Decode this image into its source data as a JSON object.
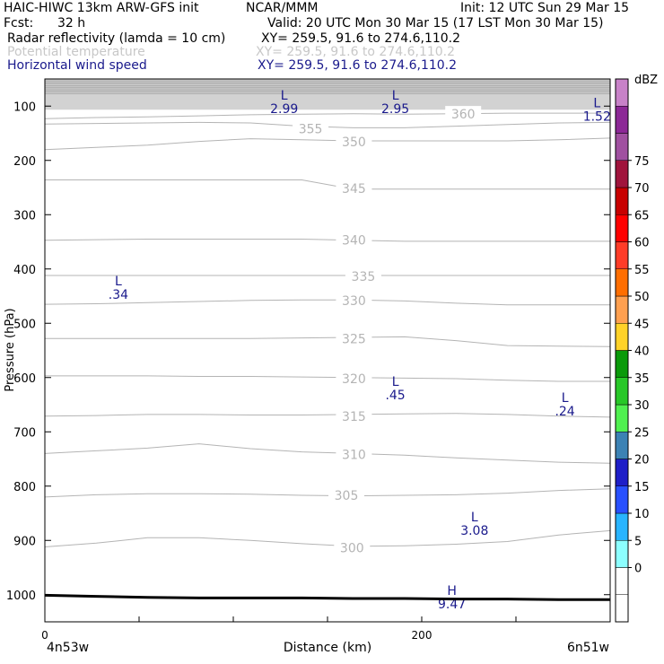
{
  "header": {
    "model": "HAIC-HIWC 13km ARW-GFS init",
    "org": "NCAR/MMM",
    "init": "Init: 12 UTC Sun 29 Mar 15",
    "fcst_label": "Fcst:",
    "fcst_value": "32 h",
    "valid": "Valid: 20 UTC Mon 30 Mar 15 (17 LST Mon 30 Mar 15)",
    "fields": [
      {
        "name": "Radar reflectivity (lamda = 10 cm)",
        "xy": "XY= 259.5, 91.6 to 274.6,110.2",
        "style": "black"
      },
      {
        "name": "Potential temperature",
        "xy": "XY= 259.5, 91.6 to 274.6,110.2",
        "style": "gray"
      },
      {
        "name": "Horizontal wind speed",
        "xy": "XY= 259.5, 91.6 to 274.6,110.2",
        "style": "blue"
      }
    ]
  },
  "chart_data": {
    "type": "contour-cross-section",
    "xlabel": "Distance (km)",
    "ylabel": "Pressure (hPa)",
    "x_ticks": [
      "0",
      "200"
    ],
    "x_endpoints": [
      "4n53w",
      "6n51w"
    ],
    "xlim": [
      0,
      300
    ],
    "y_ticks": [
      100,
      200,
      300,
      400,
      500,
      600,
      700,
      800,
      900,
      1000
    ],
    "ylim": [
      1050,
      50
    ],
    "theta_contours": [
      {
        "value": 300,
        "pressures": [
          912,
          905,
          895,
          895,
          900,
          906,
          911,
          910,
          907,
          902,
          890,
          882
        ]
      },
      {
        "value": 305,
        "pressures": [
          820,
          816,
          814,
          814,
          815,
          817,
          818,
          817,
          816,
          813,
          808,
          805
        ]
      },
      {
        "value": 310,
        "pressures": [
          740,
          735,
          730,
          722,
          731,
          737,
          740,
          743,
          748,
          752,
          756,
          758
        ]
      },
      {
        "value": 315,
        "pressures": [
          671,
          670,
          668,
          668,
          669,
          669,
          668,
          667,
          666,
          668,
          671,
          673
        ]
      },
      {
        "value": 320,
        "pressures": [
          597,
          597,
          597,
          598,
          598,
          599,
          600,
          601,
          602,
          605,
          607,
          607
        ]
      },
      {
        "value": 325,
        "pressures": [
          528,
          528,
          528,
          528,
          528,
          527,
          526,
          525,
          532,
          541,
          542,
          543
        ]
      },
      {
        "value": 330,
        "pressures": [
          465,
          464,
          462,
          460,
          458,
          457,
          457,
          459,
          463,
          466,
          466,
          466
        ]
      },
      {
        "value": 335,
        "pressures": [
          412,
          412,
          412,
          412,
          412,
          412,
          412,
          412,
          412,
          412,
          412,
          412
        ]
      },
      {
        "value": 340,
        "pressures": [
          347,
          346,
          345,
          345,
          345,
          345,
          347,
          349,
          349,
          349,
          349,
          349
        ]
      },
      {
        "value": 345,
        "pressures": [
          236,
          236,
          236,
          236,
          236,
          236,
          253,
          253,
          253,
          253,
          253,
          253
        ]
      },
      {
        "value": 350,
        "pressures": [
          180,
          176,
          172,
          165,
          160,
          162,
          164,
          164,
          164,
          164,
          162,
          159
        ]
      },
      {
        "value": 355,
        "pressures": [
          133,
          132,
          131,
          130,
          131,
          137,
          140,
          140,
          137,
          134,
          131,
          130
        ]
      },
      {
        "value": 360,
        "pressures": [
          123,
          121,
          120,
          118,
          116,
          115,
          114,
          115,
          114,
          113,
          113,
          113
        ]
      }
    ],
    "theta_label_positions": [
      {
        "text": "300",
        "x": 163,
        "p": 912
      },
      {
        "text": "305",
        "x": 160,
        "p": 815
      },
      {
        "text": "310",
        "x": 164,
        "p": 740
      },
      {
        "text": "315",
        "x": 164,
        "p": 670
      },
      {
        "text": "320",
        "x": 164,
        "p": 600
      },
      {
        "text": "325",
        "x": 164,
        "p": 527
      },
      {
        "text": "330",
        "x": 164,
        "p": 457
      },
      {
        "text": "335",
        "x": 169,
        "p": 412
      },
      {
        "text": "340",
        "x": 164,
        "p": 345
      },
      {
        "text": "345",
        "x": 164,
        "p": 250
      },
      {
        "text": "350",
        "x": 164,
        "p": 164
      },
      {
        "text": "355",
        "x": 141,
        "p": 140
      },
      {
        "text": "360",
        "x": 222,
        "p": 113
      }
    ],
    "wind_extrema": [
      {
        "kind": "L",
        "value": "2.99",
        "x": 127,
        "p": 88
      },
      {
        "kind": "L",
        "value": "2.95",
        "x": 186,
        "p": 88
      },
      {
        "kind": "L",
        "value": "1.52",
        "x": 293,
        "p": 102
      },
      {
        "kind": "L",
        "value": ".34",
        "x": 39,
        "p": 430
      },
      {
        "kind": "L",
        "value": ".45",
        "x": 186,
        "p": 615
      },
      {
        "kind": "L",
        "value": ".24",
        "x": 276,
        "p": 645
      },
      {
        "kind": "L",
        "value": "3.08",
        "x": 228,
        "p": 865
      },
      {
        "kind": "H",
        "value": "9.47",
        "x": 216,
        "p": 1000
      }
    ],
    "surface_pressure": [
      1001,
      1003,
      1005,
      1006,
      1006,
      1006,
      1007,
      1007,
      1008,
      1008,
      1009,
      1009
    ],
    "colorbar": {
      "label": "dBZ",
      "ticks": [
        "0",
        "5",
        "10",
        "15",
        "20",
        "25",
        "30",
        "35",
        "40",
        "45",
        "50",
        "55",
        "60",
        "65",
        "70",
        "75"
      ],
      "colors": [
        "#ffffff",
        "#ffffff",
        "#8cffff",
        "#28b4ff",
        "#2850ff",
        "#1e1ec8",
        "#3c82b4",
        "#50f050",
        "#28c828",
        "#0a9a0a",
        "#ffd228",
        "#ffa050",
        "#ff6e00",
        "#ff3c28",
        "#ff0000",
        "#c80000",
        "#a0143c",
        "#a050a0",
        "#8c2896",
        "#c882c8"
      ]
    },
    "grid": false
  }
}
